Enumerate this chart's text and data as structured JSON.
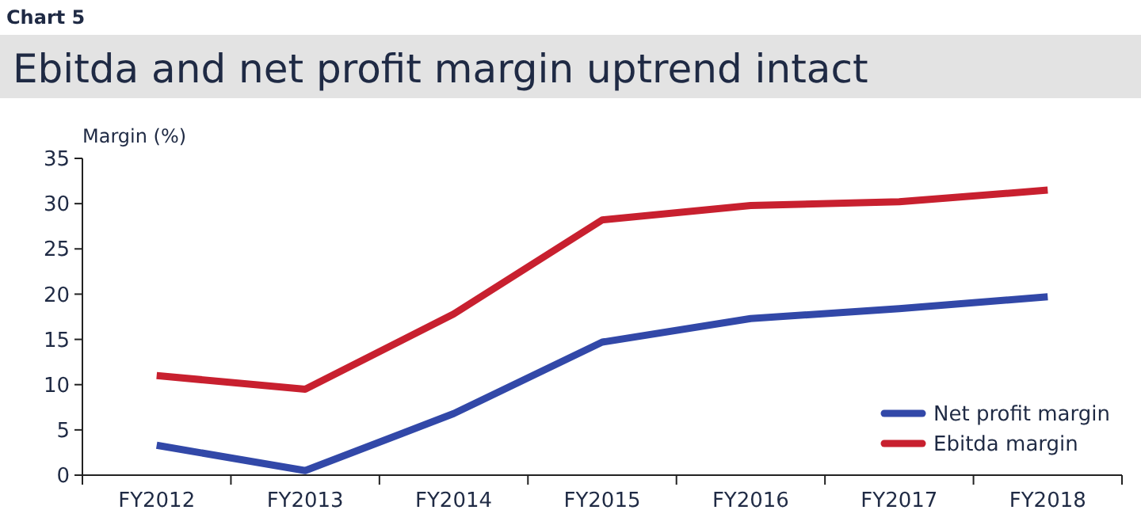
{
  "chart_data": {
    "type": "line",
    "title": "Chart 5",
    "subtitle": "Ebitda and net profit margin uptrend intact",
    "ylabel": "Margin (%)",
    "categories": [
      "FY2012",
      "FY2013",
      "FY2014",
      "FY2015",
      "FY2016",
      "FY2017",
      "FY2018"
    ],
    "series": [
      {
        "name": "Net profit margin",
        "color": "#3248a8",
        "values": [
          3.3,
          0.5,
          6.8,
          14.7,
          17.3,
          18.4,
          19.7
        ]
      },
      {
        "name": "Ebitda margin",
        "color": "#c8202f",
        "values": [
          11.0,
          9.5,
          17.8,
          28.2,
          29.8,
          30.2,
          31.5
        ]
      }
    ],
    "ylim": [
      0,
      35
    ],
    "yticks": [
      0,
      5,
      10,
      15,
      20,
      25,
      30,
      35
    ],
    "grid": false,
    "legend": "bottom right",
    "marker": "none",
    "line_style": "solid"
  }
}
